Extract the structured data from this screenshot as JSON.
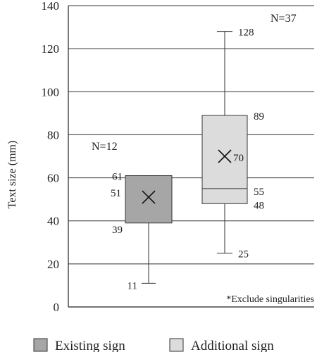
{
  "chart_data": {
    "type": "box",
    "ylabel": "Text size (mm)",
    "ylim": [
      0,
      140
    ],
    "yticks": [
      0,
      20,
      40,
      60,
      80,
      100,
      120,
      140
    ],
    "grid": true,
    "note": "*Exclude singularities",
    "legend_position": "bottom",
    "series": [
      {
        "name": "Existing sign",
        "color": "#a6a6a6",
        "n_label": "N=12",
        "min": 11,
        "q1": 39,
        "median": 51,
        "q3": 61,
        "max": 61,
        "mean": 51,
        "labels": {
          "max": "",
          "q3": "61",
          "median": "",
          "q1": "39",
          "min": "11",
          "mean": "51"
        }
      },
      {
        "name": "Additional sign",
        "color": "#dcdcdc",
        "n_label": "N=37",
        "min": 25,
        "q1": 48,
        "median": 55,
        "q3": 89,
        "max": 128,
        "mean": 70,
        "labels": {
          "max": "128",
          "q3": "89",
          "median": "55",
          "q1": "48",
          "min": "25",
          "mean": "70"
        }
      }
    ]
  }
}
